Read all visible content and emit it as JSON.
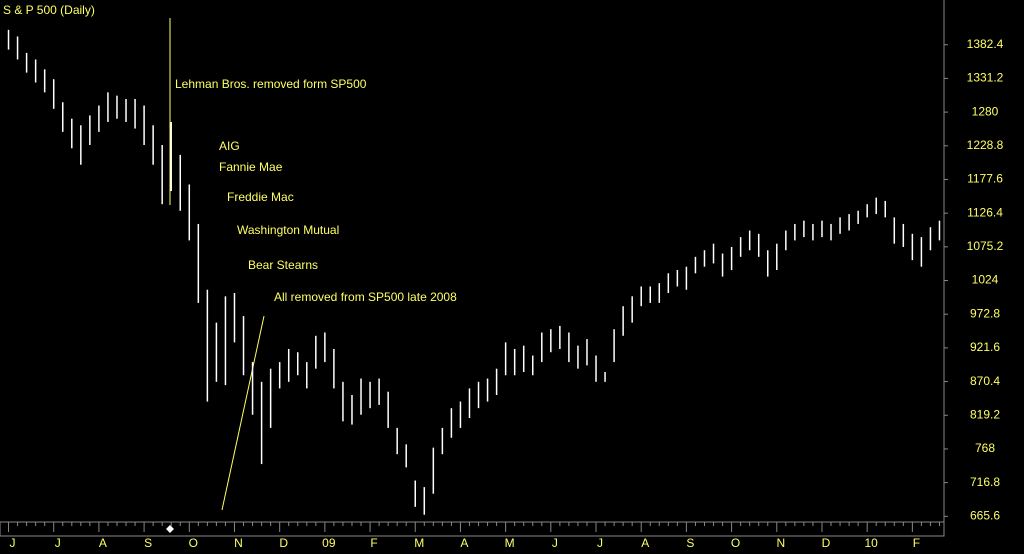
{
  "chart_data": {
    "type": "range",
    "title": "S & P 500 (Daily)",
    "categories": [
      "J",
      null,
      null,
      null,
      null,
      "J",
      null,
      null,
      null,
      null,
      "A",
      null,
      null,
      null,
      null,
      "S",
      null,
      null,
      null,
      null,
      "O",
      null,
      null,
      null,
      null,
      "N",
      null,
      null,
      null,
      null,
      "D",
      null,
      null,
      null,
      null,
      "09",
      null,
      null,
      null,
      null,
      "F",
      null,
      null,
      null,
      null,
      "M",
      null,
      null,
      null,
      null,
      "A",
      null,
      null,
      null,
      null,
      "M",
      null,
      null,
      null,
      null,
      "J",
      null,
      null,
      null,
      null,
      "J",
      null,
      null,
      null,
      null,
      "A",
      null,
      null,
      null,
      null,
      "S",
      null,
      null,
      null,
      null,
      "O",
      null,
      null,
      null,
      null,
      "N",
      null,
      null,
      null,
      null,
      "D",
      null,
      null,
      null,
      null,
      "10",
      null,
      null,
      null,
      null,
      "F",
      null,
      null,
      null
    ],
    "high": [
      1405,
      1395,
      1370,
      1360,
      1345,
      1330,
      1295,
      1270,
      1260,
      1275,
      1290,
      1310,
      1305,
      1300,
      1300,
      1290,
      1260,
      1230,
      1265,
      1215,
      1170,
      1110,
      1010,
      960,
      1000,
      1005,
      970,
      900,
      870,
      890,
      900,
      920,
      915,
      900,
      940,
      945,
      920,
      870,
      850,
      875,
      870,
      875,
      855,
      800,
      775,
      720,
      710,
      770,
      800,
      830,
      840,
      860,
      870,
      875,
      890,
      930,
      920,
      925,
      910,
      945,
      950,
      955,
      945,
      925,
      935,
      910,
      885,
      950,
      985,
      1000,
      1015,
      1015,
      1020,
      1035,
      1040,
      1045,
      1060,
      1070,
      1080,
      1065,
      1075,
      1090,
      1100,
      1095,
      1070,
      1080,
      1100,
      1110,
      1115,
      1110,
      1115,
      1110,
      1120,
      1125,
      1130,
      1140,
      1150,
      1145,
      1120,
      1110,
      1095,
      1090,
      1105,
      1115
    ],
    "low": [
      1375,
      1360,
      1340,
      1325,
      1310,
      1285,
      1250,
      1225,
      1200,
      1230,
      1250,
      1265,
      1270,
      1265,
      1255,
      1230,
      1200,
      1140,
      1160,
      1130,
      1085,
      990,
      840,
      870,
      865,
      930,
      880,
      820,
      745,
      800,
      860,
      870,
      880,
      860,
      890,
      900,
      860,
      810,
      805,
      820,
      830,
      835,
      800,
      760,
      740,
      680,
      668,
      700,
      760,
      785,
      800,
      815,
      830,
      840,
      850,
      880,
      880,
      885,
      880,
      900,
      915,
      920,
      900,
      890,
      895,
      870,
      870,
      900,
      940,
      960,
      985,
      990,
      990,
      1005,
      1015,
      1010,
      1035,
      1045,
      1050,
      1030,
      1040,
      1060,
      1070,
      1060,
      1030,
      1040,
      1070,
      1085,
      1090,
      1085,
      1090,
      1085,
      1095,
      1100,
      1110,
      1120,
      1125,
      1120,
      1080,
      1075,
      1055,
      1045,
      1070,
      1085
    ],
    "color": "#ffffff",
    "ylim": [
      660,
      1420
    ],
    "yticks": [
      665.6,
      716.8,
      768,
      819.2,
      870.4,
      921.6,
      972.8,
      1024,
      1075.2,
      1126.4,
      1177.6,
      1228.8,
      1280,
      1331.2,
      1382.4
    ],
    "annotations": [
      "Lehman Bros. removed form SP500",
      "AIG",
      "Fannie Mae",
      "Freddie Mac",
      "Washington Mutual",
      "Bear Stearns",
      "All removed from SP500 late 2008"
    ]
  }
}
